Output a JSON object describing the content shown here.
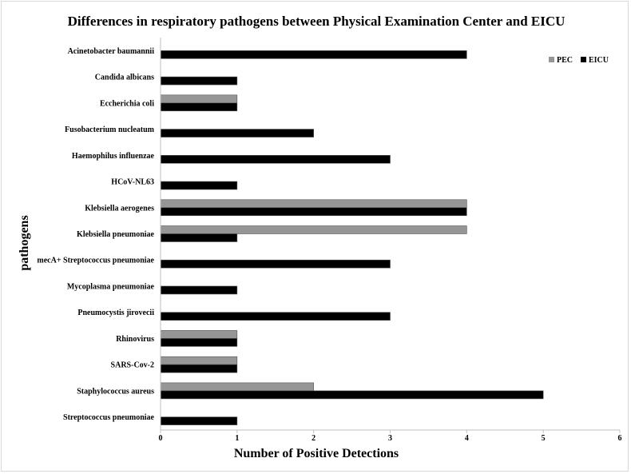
{
  "chart_data": {
    "type": "bar",
    "orientation": "horizontal",
    "title": "Differences in respiratory pathogens between Physical Examination Center and EICU",
    "xlabel": "Number of Positive Detections",
    "ylabel": "pathogens",
    "xlim": [
      0,
      6
    ],
    "xticks": [
      "0",
      "1",
      "2",
      "3",
      "4",
      "5",
      "6"
    ],
    "grid": false,
    "legend_position": "top-right",
    "categories": [
      "Acinetobacter baumannii",
      "Candida albicans",
      "Eccherichia coli",
      "Fusobacterium nucleatum",
      "Haemophilus influenzae",
      "HCoV-NL63",
      "Klebsiella aerogenes",
      "Klebsiella pneumoniae",
      "mecA+ Streptococcus pneumoniae",
      "Mycoplasma pneumoniae",
      "Pneumocystis jirovecii",
      "Rhinovirus",
      "SARS-Cov-2",
      "Staphylococcus aureus",
      "Streptococcus pneumoniae"
    ],
    "series": [
      {
        "name": "PEC",
        "color": "#969696",
        "values": [
          0,
          0,
          1,
          0,
          0,
          0,
          4,
          4,
          0,
          0,
          0,
          1,
          1,
          2,
          0
        ]
      },
      {
        "name": "EICU",
        "color": "#000000",
        "values": [
          4,
          1,
          1,
          2,
          3,
          1,
          4,
          1,
          3,
          1,
          3,
          1,
          1,
          5,
          1
        ]
      }
    ]
  }
}
